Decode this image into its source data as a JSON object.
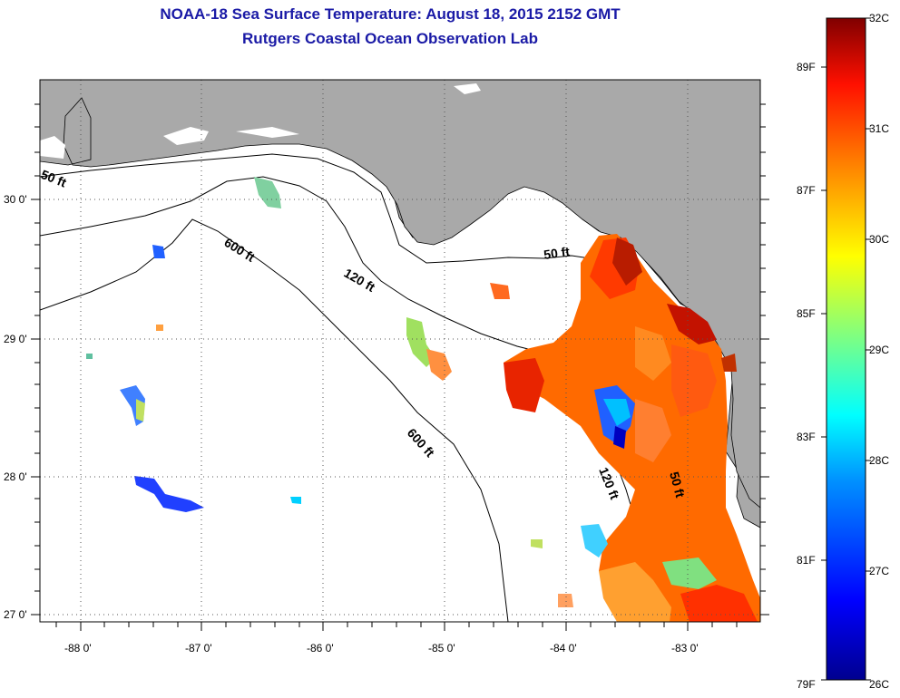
{
  "title": {
    "line1": "NOAA-18 Sea Surface Temperature:  August 18, 2015 2152 GMT",
    "line2": "Rutgers Coastal Ocean Observation Lab"
  },
  "map": {
    "lat_labels": [
      "30 0'",
      "29 0'",
      "28 0'",
      "27 0'"
    ],
    "lon_labels": [
      "-88 0'",
      "-87 0'",
      "-86 0'",
      "-85 0'",
      "-84 0'",
      "-83 0'"
    ],
    "contours": {
      "c50_west": "50 ft",
      "c50_east": "50 ft",
      "c120_north": "120 ft",
      "c600_north": "600 ft",
      "c600_south": "600 ft",
      "c120_south": "120 ft",
      "c50_south": "50 ft"
    }
  },
  "colorbar": {
    "celsius_labels": [
      "32C",
      "31C",
      "30C",
      "29C",
      "28C",
      "27C",
      "26C"
    ],
    "fahrenheit_labels": [
      "89F",
      "87F",
      "85F",
      "83F",
      "81F",
      "79F"
    ],
    "range_c": [
      26,
      32
    ],
    "colors": [
      "#00008f",
      "#0000ff",
      "#0080ff",
      "#00ffff",
      "#80ff80",
      "#ffff00",
      "#ff8000",
      "#ff0000",
      "#800000"
    ]
  }
}
